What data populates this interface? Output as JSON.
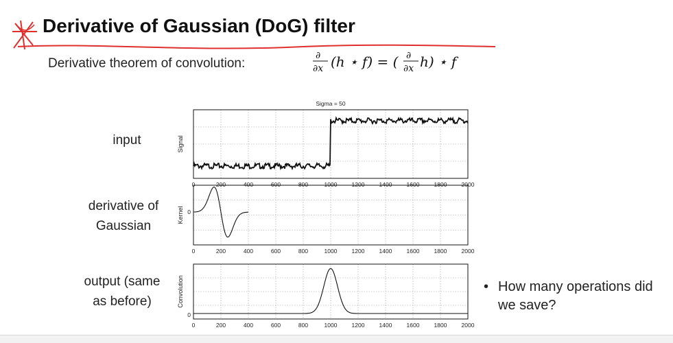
{
  "slide": {
    "title": "Derivative of Gaussian (DoG) filter",
    "subtitle": "Derivative theorem of convolution:",
    "formula_lhs": "∂/∂x (h ⋆ f) = (∂/∂x h) ⋆ f"
  },
  "row_labels": [
    {
      "line1": "input",
      "line2": ""
    },
    {
      "line1": "derivative of",
      "line2": "Gaussian"
    },
    {
      "line1": "output (same",
      "line2": "as before)"
    }
  ],
  "bullet": "How many operations did we save?",
  "colors": {
    "annotation": "#e0302e",
    "plot_line": "#111111",
    "grid": "#9a9a9a"
  },
  "chart_data": [
    {
      "type": "line",
      "title": "Sigma = 50",
      "ylabel": "Signal",
      "xticks": [
        0,
        200,
        400,
        600,
        800,
        1000,
        1200,
        1400,
        1600,
        1800,
        2000
      ],
      "xlim": [
        0,
        2000
      ],
      "description_values": {
        "low_level": 0.0,
        "high_level": 1.0,
        "step_at": 1000
      }
    },
    {
      "type": "line",
      "title": "",
      "ylabel": "Kernel",
      "yticks": [
        0
      ],
      "xticks": [
        0,
        200,
        400,
        600,
        800,
        1000,
        1200,
        1400,
        1600,
        1800,
        2000
      ],
      "xlim": [
        0,
        2000
      ],
      "description_values": {
        "center": 200,
        "sigma": 50
      }
    },
    {
      "type": "line",
      "title": "",
      "ylabel": "Convolution",
      "yticks": [
        0
      ],
      "xticks": [
        0,
        200,
        400,
        600,
        800,
        1000,
        1200,
        1400,
        1600,
        1800,
        2000
      ],
      "xlim": [
        0,
        2000
      ],
      "description_values": {
        "peak_at": 1000,
        "sigma": 50
      }
    }
  ]
}
